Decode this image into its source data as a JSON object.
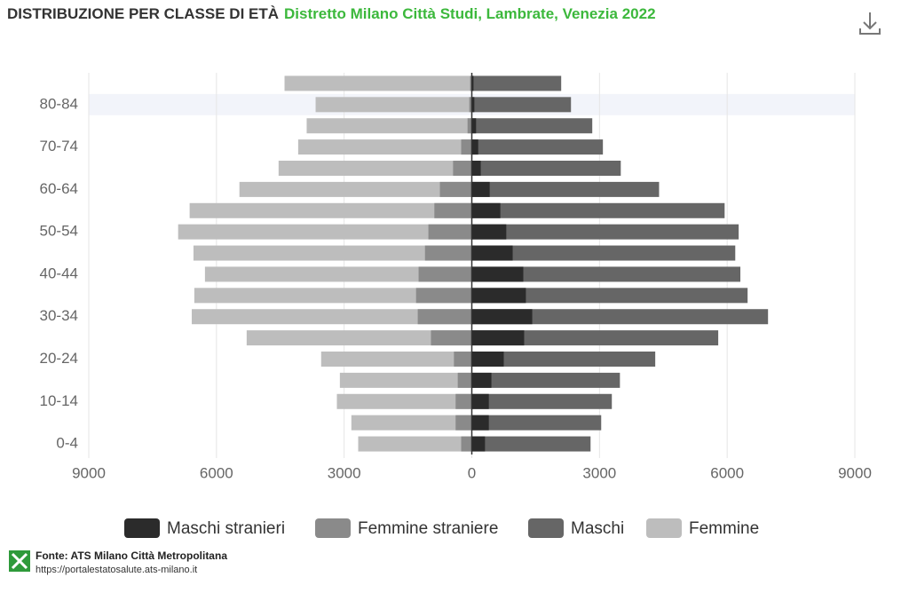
{
  "chart_data": {
    "type": "pyramid",
    "title": "DISTRIBUZIONE PER CLASSE DI ETÀ",
    "subtitle": "Distretto Milano Città Studi, Lambrate, Venezia 2022",
    "categories": [
      "0-4",
      null,
      "10-14",
      null,
      "20-24",
      null,
      "30-34",
      null,
      "40-44",
      null,
      "50-54",
      null,
      "60-64",
      null,
      "70-74",
      null,
      "80-84",
      null
    ],
    "series": [
      {
        "name": "Maschi stranieri",
        "color": "#2b2b2b",
        "values": [
          310,
          400,
          400,
          460,
          750,
          1230,
          1420,
          1270,
          1210,
          960,
          810,
          670,
          420,
          210,
          150,
          100,
          60,
          40
        ]
      },
      {
        "name": "Femmine straniere",
        "color": "#8a8a8a",
        "values": [
          -250,
          -380,
          -380,
          -330,
          -420,
          -960,
          -1270,
          -1310,
          -1250,
          -1100,
          -1020,
          -880,
          -750,
          -440,
          -250,
          -100,
          -60,
          -40
        ]
      },
      {
        "name": "Maschi",
        "color": "#666666",
        "values": [
          2790,
          3040,
          3290,
          3480,
          4310,
          5790,
          6960,
          6480,
          6310,
          6190,
          6270,
          5940,
          4400,
          3500,
          3080,
          2830,
          2330,
          2100
        ]
      },
      {
        "name": "Femmine",
        "color": "#bdbdbd",
        "values": [
          -2670,
          -2830,
          -3170,
          -3100,
          -3540,
          -5290,
          -6580,
          -6520,
          -6270,
          -6540,
          -6900,
          -6630,
          -5460,
          -4540,
          -4080,
          -3880,
          -3670,
          -4400
        ]
      }
    ],
    "xlim": [
      -9000,
      9000
    ],
    "xticks": [
      {
        "value": -9000,
        "label": "9000"
      },
      {
        "value": -6000,
        "label": "6000"
      },
      {
        "value": -3000,
        "label": "3000"
      },
      0,
      3000,
      6000,
      9000
    ],
    "grid": true,
    "source": "Fonte: ATS Milano Città Metropolitana",
    "source_url": "https://portalestatosalute.ats-milano.it"
  }
}
